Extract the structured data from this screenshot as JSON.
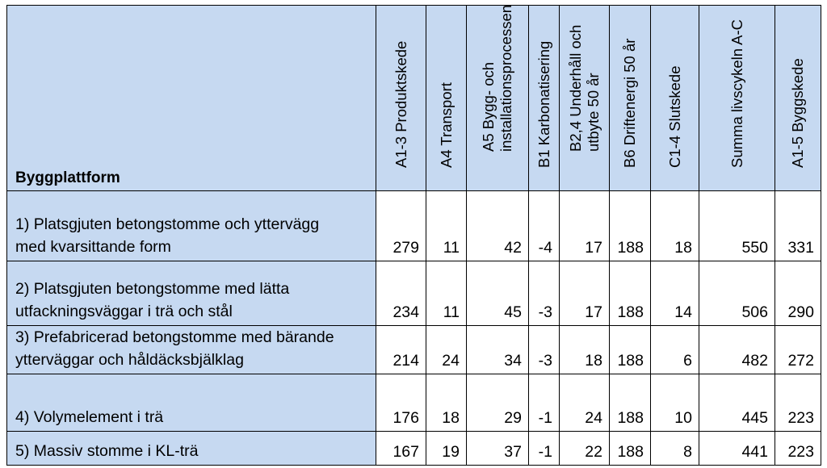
{
  "header": {
    "platform_label": "Byggplattform",
    "columns": [
      [
        "A1-3 Produktskede"
      ],
      [
        "A4 Transport"
      ],
      [
        "A5 Bygg- och",
        "installationsprocessen"
      ],
      [
        "B1 Karbonatisering"
      ],
      [
        "B2,4 Underhåll och",
        "utbyte 50 år"
      ],
      [
        "B6 Driftenergi 50 år"
      ],
      [
        "C1-4 Slutskede"
      ],
      [
        "Summa livscykeln A-C"
      ],
      [
        "A1-5 Byggskede"
      ]
    ]
  },
  "rows": [
    {
      "label": [
        "1) Platsgjuten betongstomme och yttervägg",
        "med kvarsittande form"
      ],
      "values": [
        "279",
        "11",
        "42",
        "-4",
        "17",
        "188",
        "18",
        "550",
        "331"
      ]
    },
    {
      "label": [
        "2) Platsgjuten betongstomme med lätta",
        "utfackningsväggar i trä och stål"
      ],
      "values": [
        "234",
        "11",
        "45",
        "-3",
        "17",
        "188",
        "14",
        "506",
        "290"
      ]
    },
    {
      "label": [
        "3) Prefabricerad betongstomme med bärande",
        "ytterväggar och håldäcksbjälklag"
      ],
      "values": [
        "214",
        "24",
        "34",
        "-3",
        "18",
        "188",
        "6",
        "482",
        "272"
      ]
    },
    {
      "label": [
        "4) Volymelement i trä"
      ],
      "values": [
        "176",
        "18",
        "29",
        "-1",
        "24",
        "188",
        "10",
        "445",
        "223"
      ]
    },
    {
      "label": [
        "5) Massiv stomme i KL-trä"
      ],
      "values": [
        "167",
        "19",
        "37",
        "-1",
        "22",
        "188",
        "8",
        "441",
        "223"
      ]
    }
  ],
  "colors": {
    "header_fill": "#c6d9f1",
    "border": "#000000"
  }
}
